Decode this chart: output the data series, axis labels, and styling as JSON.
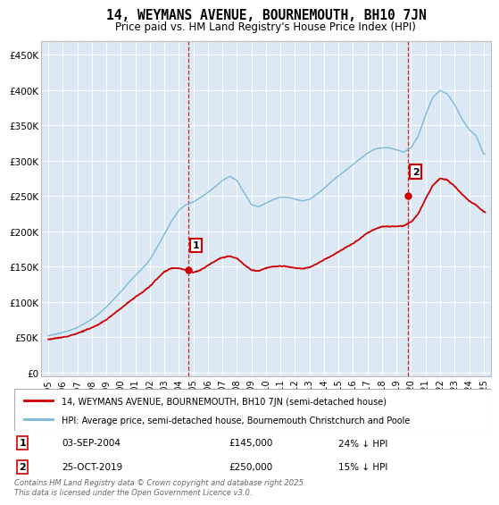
{
  "title": "14, WEYMANS AVENUE, BOURNEMOUTH, BH10 7JN",
  "subtitle": "Price paid vs. HM Land Registry's House Price Index (HPI)",
  "background_color": "#ffffff",
  "plot_bg_color": "#dce9f5",
  "grid_color": "#ffffff",
  "hpi_color": "#7ab8d9",
  "price_color": "#cc0000",
  "dashed_color": "#cc0000",
  "transaction1": {
    "date": "03-SEP-2004",
    "price": 145000,
    "hpi_diff": "24% ↓ HPI",
    "x": 2004.67
  },
  "transaction2": {
    "date": "25-OCT-2019",
    "price": 250000,
    "hpi_diff": "15% ↓ HPI",
    "x": 2019.81
  },
  "footer": "Contains HM Land Registry data © Crown copyright and database right 2025.\nThis data is licensed under the Open Government Licence v3.0.",
  "legend_label1": "14, WEYMANS AVENUE, BOURNEMOUTH, BH10 7JN (semi-detached house)",
  "legend_label2": "HPI: Average price, semi-detached house, Bournemouth Christchurch and Poole",
  "yticks": [
    0,
    50000,
    100000,
    150000,
    200000,
    250000,
    300000,
    350000,
    400000,
    450000
  ],
  "ytick_labels": [
    "£0",
    "£50K",
    "£100K",
    "£150K",
    "£200K",
    "£250K",
    "£300K",
    "£350K",
    "£400K",
    "£450K"
  ],
  "xlim": [
    1994.5,
    2025.5
  ],
  "ylim": [
    -5000,
    470000
  ]
}
